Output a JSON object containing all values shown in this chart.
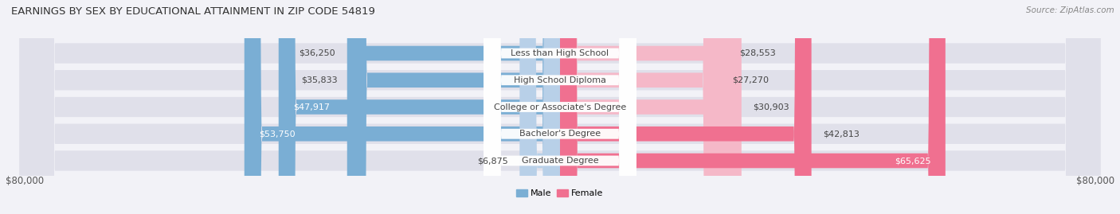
{
  "title": "EARNINGS BY SEX BY EDUCATIONAL ATTAINMENT IN ZIP CODE 54819",
  "source": "Source: ZipAtlas.com",
  "categories": [
    "Less than High School",
    "High School Diploma",
    "College or Associate's Degree",
    "Bachelor's Degree",
    "Graduate Degree"
  ],
  "male_values": [
    36250,
    35833,
    47917,
    53750,
    6875
  ],
  "female_values": [
    28553,
    27270,
    30903,
    42813,
    65625
  ],
  "male_color": "#7aaed4",
  "female_color": "#f07090",
  "male_color_light": "#b8d0e8",
  "female_color_light": "#f5b8c8",
  "max_val": 80000,
  "xlabel_left": "$80,000",
  "xlabel_right": "$80,000",
  "legend_male": "Male",
  "legend_female": "Female",
  "background_color": "#f2f2f7",
  "row_bg_color": "#e0e0ea",
  "title_fontsize": 9.5,
  "source_fontsize": 7.5,
  "axis_fontsize": 8.5,
  "label_fontsize": 8.0,
  "value_fontsize": 8.0
}
